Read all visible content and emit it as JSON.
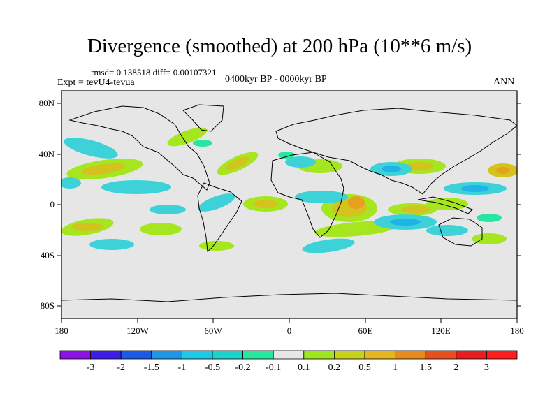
{
  "title": "Divergence (smoothed) at 200 hPa (10**6 m/s)",
  "stats": "rmsd= 0.138518  diff= 0.00107321",
  "experiment": "Expt = tevU4-tevua",
  "period": "0400kyr BP - 0000kyr BP",
  "season": "ANN",
  "lat_ticks": [
    "80N",
    "40N",
    "0",
    "40S",
    "80S"
  ],
  "lon_ticks": [
    "180",
    "120W",
    "60W",
    "0",
    "60E",
    "120E",
    "180"
  ],
  "colorbar": {
    "labels": [
      "-3",
      "-2",
      "-1.5",
      "-1",
      "-0.5",
      "-0.2",
      "-0.1",
      "0.1",
      "0.2",
      "0.5",
      "1",
      "1.5",
      "2",
      "3"
    ],
    "colors": [
      "#8c12e6",
      "#3c1ee6",
      "#1a5ae6",
      "#1e96e6",
      "#1ec8e6",
      "#1ed2c8",
      "#28e6a0",
      "#e6e6e6",
      "#a0e61e",
      "#c8d21e",
      "#e6b41e",
      "#e68c1e",
      "#e6501e",
      "#e61e1e",
      "#ff1e1e"
    ]
  },
  "map": {
    "background": "#e6e6e6",
    "coastline_color": "#000000",
    "lon_range": [
      -180,
      180
    ],
    "lat_range": [
      -90,
      90
    ]
  }
}
